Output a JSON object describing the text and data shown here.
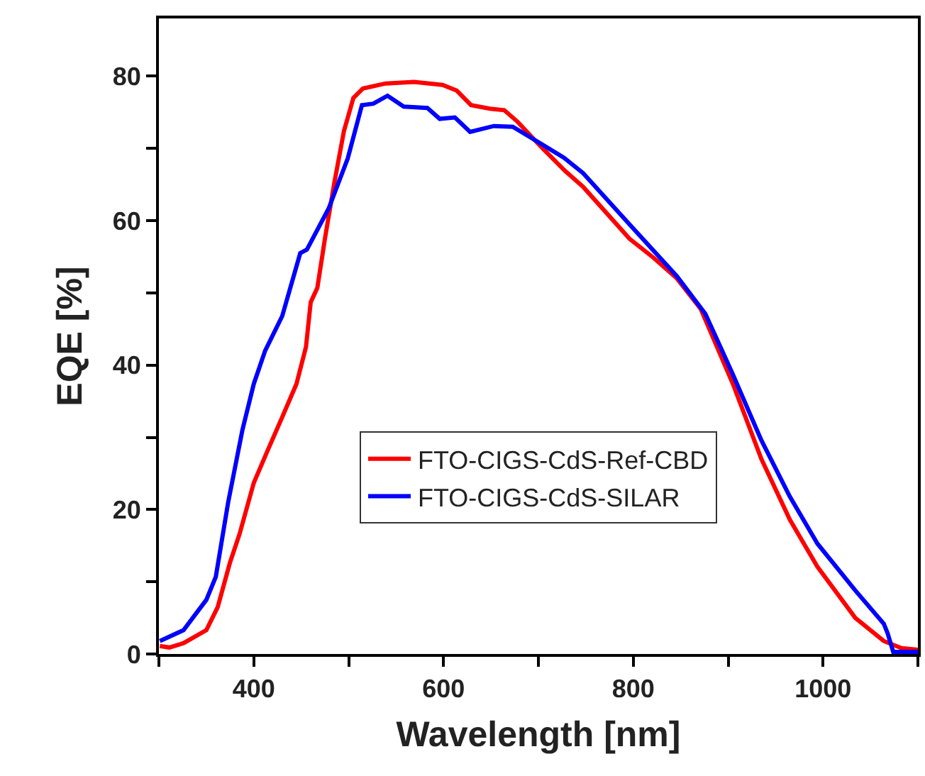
{
  "chart_data": {
    "type": "line",
    "xlabel": "Wavelength [nm]",
    "ylabel": "EQE [%]",
    "xlim": [
      300,
      1100
    ],
    "ylim": [
      0,
      88
    ],
    "xticks": [
      {
        "value": 300,
        "label": null
      },
      400,
      {
        "value": 500,
        "label": null
      },
      600,
      {
        "value": 700,
        "label": null
      },
      800,
      {
        "value": 900,
        "label": null
      },
      1000,
      {
        "value": 1100,
        "label": null
      }
    ],
    "yticks": [
      0,
      {
        "value": 10,
        "label": null
      },
      20,
      {
        "value": 30,
        "label": null
      },
      40,
      {
        "value": 50,
        "label": null
      },
      60,
      {
        "value": 70,
        "label": null
      },
      80
    ],
    "legend": "bottom",
    "marker": "none",
    "line_style": "solid",
    "series": [
      {
        "name": "FTO-CIGS-CdS-Ref-CBD",
        "color": "#ff0000",
        "x": [
          301,
          311,
          326,
          350,
          362,
          375,
          385,
          400,
          415,
          430,
          445,
          455,
          460,
          467,
          475,
          485,
          495,
          505,
          515,
          539,
          569,
          599,
          614,
          629,
          649,
          664,
          678,
          703,
          728,
          747,
          796,
          821,
          846,
          871,
          905,
          935,
          965,
          994,
          1034,
          1064,
          1083,
          1100
        ],
        "values": [
          1.1,
          0.9,
          1.5,
          3.3,
          6.5,
          12.7,
          16.6,
          23.7,
          28.3,
          32.8,
          37.4,
          42.5,
          48.7,
          50.7,
          57.5,
          65.3,
          72.4,
          77,
          78.3,
          79,
          79.2,
          78.8,
          78,
          76,
          75.5,
          75.3,
          73.7,
          70.2,
          66.9,
          64.7,
          57.5,
          54.9,
          52,
          47.8,
          37.4,
          27,
          18.6,
          12.1,
          5,
          1.8,
          0.8,
          0.6
        ]
      },
      {
        "name": "FTO-CIGS-CdS-SILAR",
        "color": "#0000ff",
        "x": [
          301,
          326,
          350,
          360,
          373,
          388,
          400,
          412,
          430,
          449,
          456,
          479,
          499,
          514,
          526,
          541,
          558,
          583,
          596,
          612,
          628,
          653,
          673,
          692,
          727,
          747,
          796,
          846,
          876,
          905,
          935,
          965,
          994,
          1034,
          1064,
          1068,
          1074,
          1100
        ],
        "values": [
          1.8,
          3.3,
          7.5,
          10.7,
          21,
          31,
          37.4,
          42,
          46.8,
          55.5,
          56,
          61.7,
          68.6,
          76,
          76.2,
          77.3,
          75.8,
          75.6,
          74.1,
          74.3,
          72.3,
          73.1,
          73,
          71.5,
          68.7,
          66.6,
          59.5,
          52.3,
          47.1,
          38.7,
          29.6,
          21.8,
          15.3,
          8.8,
          4.2,
          2.9,
          0.3,
          0.3
        ]
      }
    ]
  }
}
